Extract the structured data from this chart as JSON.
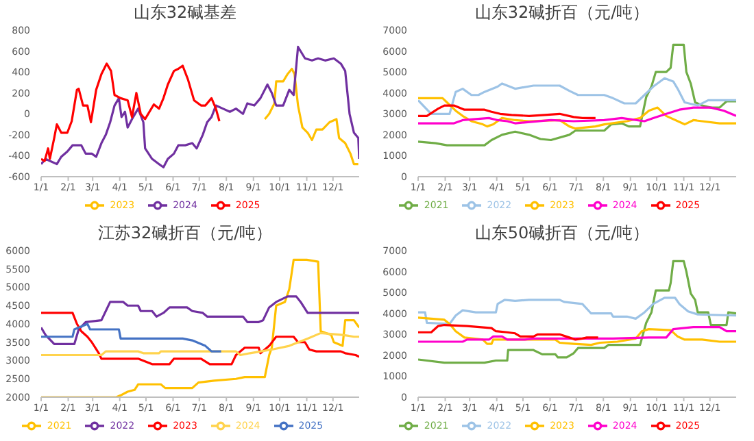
{
  "chart_data": [
    {
      "type": "line",
      "title": "山东32碱基差",
      "xlim": [
        "--01-01",
        "--12-31"
      ],
      "xticks": [
        {
          "value": "--01-01",
          "label": "1/1"
        },
        {
          "value": "--02-01",
          "label": "2/1"
        },
        {
          "value": "--03-01",
          "label": "3/1"
        },
        {
          "value": "--04-01",
          "label": "4/1"
        },
        {
          "value": "--05-01",
          "label": "5/1"
        },
        {
          "value": "--06-01",
          "label": "6/1"
        },
        {
          "value": "--07-01",
          "label": "7/1"
        },
        {
          "value": "--08-01",
          "label": "8/1"
        },
        {
          "value": "--09-01",
          "label": "9/1"
        },
        {
          "value": "--10-01",
          "label": "10/1"
        },
        {
          "value": "--11-01",
          "label": "11/1"
        },
        {
          "value": "--12-01",
          "label": "12/1"
        }
      ],
      "ylim": [
        -600,
        800
      ],
      "yticks": [
        -600,
        -400,
        -200,
        0,
        200,
        400,
        600,
        800
      ],
      "legend": "bottom",
      "series": [
        {
          "name": "2023",
          "color": "#ffc000",
          "x": [
            "--09-14",
            "--09-19",
            "--09-25",
            "--09-27",
            "--10-05",
            "--10-10",
            "--10-15",
            "--10-18",
            "--10-22",
            "--10-27",
            "--11-02",
            "--11-07",
            "--11-12",
            "--11-19",
            "--11-27",
            "--12-05",
            "--12-08",
            "--12-15",
            "--12-21",
            "--12-25",
            "--12-30"
          ],
          "values": [
            -50,
            0,
            100,
            310,
            310,
            380,
            430,
            380,
            80,
            -130,
            -180,
            -250,
            -150,
            -150,
            -80,
            -50,
            -230,
            -280,
            -380,
            -480,
            -480
          ]
        },
        {
          "name": "2024",
          "color": "#7030a0",
          "x": [
            "--01-01",
            "--01-06",
            "--01-11",
            "--01-19",
            "--01-24",
            "--01-31",
            "--02-06",
            "--02-16",
            "--02-21",
            "--02-28",
            "--03-05",
            "--03-11",
            "--03-16",
            "--03-21",
            "--03-26",
            "--03-31",
            "--04-03",
            "--04-07",
            "--04-10",
            "--04-15",
            "--04-22",
            "--04-28",
            "--04-30",
            "--05-08",
            "--05-16",
            "--05-21",
            "--05-26",
            "--06-02",
            "--06-07",
            "--06-15",
            "--06-23",
            "--06-28",
            "--07-05",
            "--07-10",
            "--07-15",
            "--07-20",
            "--07-28",
            "--08-05",
            "--08-12",
            "--08-20",
            "--08-25",
            "--09-02",
            "--09-09",
            "--09-17",
            "--09-22",
            "--09-27",
            "--10-05",
            "--10-12",
            "--10-17",
            "--10-22",
            "--10-30",
            "--11-07",
            "--11-14",
            "--11-22",
            "--12-02",
            "--12-10",
            "--12-15",
            "--12-20",
            "--12-25",
            "--12-30",
            "--12-31"
          ],
          "values": [
            -480,
            -430,
            -450,
            -480,
            -410,
            -360,
            -300,
            -300,
            -380,
            -380,
            -410,
            -280,
            -200,
            -80,
            80,
            150,
            -30,
            20,
            -130,
            -50,
            50,
            -80,
            -330,
            -430,
            -480,
            -510,
            -430,
            -380,
            -300,
            -300,
            -280,
            -330,
            -200,
            -80,
            -30,
            80,
            50,
            20,
            50,
            0,
            100,
            80,
            150,
            280,
            200,
            80,
            80,
            230,
            180,
            640,
            530,
            510,
            530,
            510,
            530,
            480,
            410,
            0,
            -180,
            -230,
            -430
          ]
        },
        {
          "name": "2025",
          "color": "#ff0000",
          "x": [
            "--01-01",
            "--01-05",
            "--01-09",
            "--01-11",
            "--01-16",
            "--01-19",
            "--01-24",
            "--01-31",
            "--02-05",
            "--02-11",
            "--02-13",
            "--02-18",
            "--02-23",
            "--02-27",
            "--03-05",
            "--03-11",
            "--03-17",
            "--03-22",
            "--03-26",
            "--04-02",
            "--04-10",
            "--04-15",
            "--04-20",
            "--04-25",
            "--04-30",
            "--05-10",
            "--05-16",
            "--05-21",
            "--05-26",
            "--06-02",
            "--06-07",
            "--06-12",
            "--06-18",
            "--06-25",
            "--07-03",
            "--07-08",
            "--07-15",
            "--07-20",
            "--07-24"
          ],
          "values": [
            -430,
            -450,
            -330,
            -430,
            -230,
            -100,
            -180,
            -180,
            -70,
            230,
            240,
            80,
            80,
            -80,
            230,
            380,
            480,
            410,
            180,
            150,
            130,
            -30,
            200,
            0,
            -50,
            90,
            50,
            150,
            280,
            410,
            430,
            460,
            330,
            130,
            80,
            80,
            150,
            50,
            -70
          ]
        }
      ]
    },
    {
      "type": "line",
      "title": "山东32碱折百（元/吨）",
      "xlim": [
        "--01-01",
        "--12-31"
      ],
      "xticks": [
        {
          "value": "--01-01",
          "label": "1/1"
        },
        {
          "value": "--02-01",
          "label": "2/1"
        },
        {
          "value": "--03-01",
          "label": "3/1"
        },
        {
          "value": "--04-01",
          "label": "4/1"
        },
        {
          "value": "--05-01",
          "label": "5/1"
        },
        {
          "value": "--06-01",
          "label": "6/1"
        },
        {
          "value": "--07-01",
          "label": "7/1"
        },
        {
          "value": "--08-01",
          "label": "8/1"
        },
        {
          "value": "--09-01",
          "label": "9/1"
        },
        {
          "value": "--10-01",
          "label": "10/1"
        },
        {
          "value": "--11-01",
          "label": "11/1"
        },
        {
          "value": "--12-01",
          "label": "12/1"
        }
      ],
      "ylim": [
        0,
        7000
      ],
      "yticks": [
        0,
        1000,
        2000,
        3000,
        4000,
        5000,
        6000,
        7000
      ],
      "legend": "bottom",
      "series": [
        {
          "name": "2021",
          "color": "#70ad47",
          "x": [
            "--01-01",
            "--01-21",
            "--02-03",
            "--03-18",
            "--03-26",
            "--04-07",
            "--04-22",
            "--05-08",
            "--05-21",
            "--06-02",
            "--06-23",
            "--06-30",
            "--08-02",
            "--08-10",
            "--08-22",
            "--08-30",
            "--09-12",
            "--09-19",
            "--09-25",
            "--09-30",
            "--10-12",
            "--10-17",
            "--10-20",
            "--11-01",
            "--11-04",
            "--11-09",
            "--11-14",
            "--11-22",
            "--12-02",
            "--12-12",
            "--12-20",
            "--12-31"
          ],
          "values": [
            1670,
            1600,
            1500,
            1500,
            1750,
            2000,
            2150,
            2000,
            1800,
            1750,
            2000,
            2200,
            2200,
            2500,
            2550,
            2400,
            2400,
            3800,
            4300,
            5000,
            5000,
            5200,
            6300,
            6300,
            5000,
            4450,
            3550,
            3400,
            3300,
            3300,
            3600,
            3600
          ]
        },
        {
          "name": "2022",
          "color": "#9dc3e6",
          "x": [
            "--01-01",
            "--01-09",
            "--01-16",
            "--02-06",
            "--02-13",
            "--02-21",
            "--03-03",
            "--03-11",
            "--03-18",
            "--04-02",
            "--04-07",
            "--04-22",
            "--05-13",
            "--06-12",
            "--06-23",
            "--07-03",
            "--08-02",
            "--08-12",
            "--08-25",
            "--09-07",
            "--09-17",
            "--09-27",
            "--10-10",
            "--10-20",
            "--10-25",
            "--11-02",
            "--11-17",
            "--11-29",
            "--12-31"
          ],
          "values": [
            3650,
            3300,
            3000,
            3000,
            4050,
            4200,
            3900,
            3900,
            4050,
            4300,
            4450,
            4200,
            4350,
            4350,
            4100,
            3900,
            3900,
            3750,
            3500,
            3500,
            3900,
            4300,
            4700,
            4550,
            4200,
            3550,
            3400,
            3650,
            3650
          ]
        },
        {
          "name": "2023",
          "color": "#ffc000",
          "x": [
            "--01-01",
            "--01-29",
            "--02-03",
            "--02-13",
            "--02-21",
            "--03-03",
            "--03-16",
            "--03-21",
            "--03-28",
            "--04-07",
            "--04-22",
            "--05-08",
            "--06-12",
            "--06-23",
            "--06-30",
            "--07-23",
            "--08-02",
            "--08-28",
            "--09-12",
            "--09-22",
            "--10-02",
            "--10-12",
            "--11-02",
            "--11-12",
            "--11-22",
            "--12-12",
            "--12-31"
          ],
          "values": [
            3750,
            3750,
            3550,
            3150,
            2900,
            2650,
            2500,
            2400,
            2500,
            2800,
            2700,
            2650,
            2700,
            2400,
            2300,
            2400,
            2500,
            2650,
            2800,
            3150,
            3300,
            2900,
            2500,
            2700,
            2650,
            2550,
            2550
          ]
        },
        {
          "name": "2024",
          "color": "#ff00cc",
          "x": [
            "--01-01",
            "--02-11",
            "--02-21",
            "--03-23",
            "--04-02",
            "--04-13",
            "--04-22",
            "--06-02",
            "--06-28",
            "--08-02",
            "--08-22",
            "--09-17",
            "--09-27",
            "--10-12",
            "--10-27",
            "--11-12",
            "--12-02",
            "--12-17",
            "--12-31"
          ],
          "values": [
            2550,
            2550,
            2700,
            2800,
            2700,
            2650,
            2550,
            2700,
            2650,
            2700,
            2800,
            2650,
            2800,
            3000,
            3200,
            3300,
            3300,
            3150,
            2900
          ]
        },
        {
          "name": "2025",
          "color": "#ff0000",
          "x": [
            "--01-01",
            "--01-11",
            "--01-24",
            "--01-31",
            "--02-11",
            "--02-23",
            "--03-18",
            "--03-26",
            "--04-05",
            "--04-18",
            "--05-08",
            "--05-26",
            "--06-12",
            "--06-28",
            "--07-08",
            "--07-23"
          ],
          "values": [
            2900,
            2900,
            3250,
            3400,
            3400,
            3200,
            3200,
            3100,
            3000,
            2950,
            2900,
            2950,
            3000,
            2850,
            2800,
            2800
          ]
        }
      ]
    },
    {
      "type": "line",
      "title": "江苏32碱折百（元/吨）",
      "xlim": [
        "--01-01",
        "--12-31"
      ],
      "xticks": [
        {
          "value": "--01-01",
          "label": "1/1"
        },
        {
          "value": "--02-01",
          "label": "2/1"
        },
        {
          "value": "--03-01",
          "label": "3/1"
        },
        {
          "value": "--04-01",
          "label": "4/1"
        },
        {
          "value": "--05-01",
          "label": "5/1"
        },
        {
          "value": "--06-01",
          "label": "6/1"
        },
        {
          "value": "--07-01",
          "label": "7/1"
        },
        {
          "value": "--08-01",
          "label": "8/1"
        },
        {
          "value": "--09-01",
          "label": "9/1"
        },
        {
          "value": "--10-01",
          "label": "10/1"
        },
        {
          "value": "--11-01",
          "label": "11/1"
        },
        {
          "value": "--12-01",
          "label": "12/1"
        }
      ],
      "ylim": [
        2000,
        6000
      ],
      "yticks": [
        2000,
        2500,
        3000,
        3500,
        4000,
        4500,
        5000,
        5500,
        6000
      ],
      "legend": "bottom",
      "series": [
        {
          "name": "2021",
          "color": "#ffc000",
          "x": [
            "--01-01",
            "--03-28",
            "--04-02",
            "--04-10",
            "--04-18",
            "--04-22",
            "--05-18",
            "--05-23",
            "--06-23",
            "--06-30",
            "--07-18",
            "--08-12",
            "--08-22",
            "--09-14",
            "--09-19",
            "--09-22",
            "--09-27",
            "--10-07",
            "--10-12",
            "--10-17",
            "--11-01",
            "--11-14",
            "--11-17",
            "--11-29",
            "--12-02",
            "--12-12",
            "--12-15",
            "--12-25",
            "--12-31"
          ],
          "values": [
            2000,
            2000,
            2050,
            2150,
            2200,
            2350,
            2350,
            2250,
            2250,
            2400,
            2450,
            2500,
            2550,
            2550,
            3150,
            3350,
            4500,
            4600,
            4950,
            5750,
            5750,
            5700,
            3800,
            3700,
            3500,
            3400,
            4100,
            4100,
            3900
          ]
        },
        {
          "name": "2022",
          "color": "#7030a0",
          "x": [
            "--01-01",
            "--01-06",
            "--01-16",
            "--02-08",
            "--02-13",
            "--02-21",
            "--03-11",
            "--03-16",
            "--03-21",
            "--04-05",
            "--04-10",
            "--04-22",
            "--04-25",
            "--05-08",
            "--05-13",
            "--05-21",
            "--05-28",
            "--06-17",
            "--06-23",
            "--07-05",
            "--07-10",
            "--08-20",
            "--08-25",
            "--09-07",
            "--09-12",
            "--09-19",
            "--09-27",
            "--10-10",
            "--10-20",
            "--10-25",
            "--11-02",
            "--12-31"
          ],
          "values": [
            3900,
            3700,
            3450,
            3450,
            3850,
            4050,
            4100,
            4350,
            4600,
            4600,
            4500,
            4500,
            4350,
            4350,
            4200,
            4300,
            4450,
            4450,
            4350,
            4300,
            4200,
            4200,
            4050,
            4050,
            4100,
            4450,
            4600,
            4750,
            4750,
            4600,
            4300,
            4300
          ]
        },
        {
          "name": "2023",
          "color": "#ff0000",
          "x": [
            "--01-01",
            "--02-06",
            "--02-11",
            "--02-16",
            "--02-23",
            "--02-28",
            "--03-08",
            "--03-11",
            "--04-22",
            "--05-08",
            "--05-28",
            "--06-02",
            "--07-03",
            "--07-13",
            "--08-07",
            "--08-12",
            "--08-22",
            "--09-07",
            "--09-09",
            "--09-19",
            "--09-27",
            "--10-17",
            "--10-22",
            "--10-30",
            "--11-04",
            "--11-12",
            "--12-10",
            "--12-15",
            "--12-27",
            "--12-31"
          ],
          "values": [
            4300,
            4300,
            4000,
            3800,
            3650,
            3500,
            3200,
            3050,
            3050,
            2900,
            2900,
            3050,
            3050,
            2900,
            2900,
            3150,
            3350,
            3350,
            3200,
            3400,
            3650,
            3650,
            3500,
            3500,
            3300,
            3250,
            3250,
            3200,
            3150,
            3100
          ]
        },
        {
          "name": "2024",
          "color": "#ffd34d",
          "x": [
            "--01-01",
            "--03-11",
            "--03-16",
            "--04-22",
            "--04-28",
            "--05-16",
            "--05-18",
            "--08-12",
            "--08-17",
            "--08-28",
            "--09-22",
            "--10-12",
            "--11-02",
            "--11-17",
            "--12-12",
            "--12-25",
            "--12-31"
          ],
          "values": [
            3150,
            3150,
            3250,
            3250,
            3200,
            3200,
            3250,
            3250,
            3150,
            3200,
            3300,
            3400,
            3600,
            3750,
            3700,
            3650,
            3650
          ]
        },
        {
          "name": "2025",
          "color": "#4472c4",
          "x": [
            "--01-01",
            "--02-06",
            "--02-08",
            "--02-18",
            "--02-23",
            "--02-26",
            "--03-31",
            "--04-02",
            "--06-12",
            "--06-23",
            "--07-08",
            "--07-15",
            "--07-26"
          ],
          "values": [
            3650,
            3650,
            3850,
            3950,
            4000,
            3850,
            3850,
            3600,
            3600,
            3550,
            3400,
            3250,
            3250
          ]
        }
      ]
    },
    {
      "type": "line",
      "title": "山东50碱折百（元/吨）",
      "xlim": [
        "--01-01",
        "--12-31"
      ],
      "xticks": [
        {
          "value": "--01-01",
          "label": "1/1"
        },
        {
          "value": "--02-01",
          "label": "2/1"
        },
        {
          "value": "--03-01",
          "label": "3/1"
        },
        {
          "value": "--04-01",
          "label": "4/1"
        },
        {
          "value": "--05-01",
          "label": "5/1"
        },
        {
          "value": "--06-01",
          "label": "6/1"
        },
        {
          "value": "--07-01",
          "label": "7/1"
        },
        {
          "value": "--08-01",
          "label": "8/1"
        },
        {
          "value": "--09-01",
          "label": "9/1"
        },
        {
          "value": "--10-01",
          "label": "10/1"
        },
        {
          "value": "--11-01",
          "label": "11/1"
        },
        {
          "value": "--12-01",
          "label": "12/1"
        }
      ],
      "ylim": [
        0,
        7000
      ],
      "yticks": [
        0,
        1000,
        2000,
        3000,
        4000,
        5000,
        6000,
        7000
      ],
      "legend": "bottom",
      "series": [
        {
          "name": "2021",
          "color": "#70ad47",
          "x": [
            "--01-01",
            "--01-31",
            "--03-18",
            "--03-31",
            "--04-13",
            "--04-14",
            "--05-13",
            "--05-23",
            "--06-07",
            "--06-10",
            "--06-20",
            "--06-28",
            "--07-03",
            "--08-02",
            "--08-07",
            "--09-12",
            "--09-19",
            "--09-25",
            "--09-30",
            "--10-15",
            "--10-17",
            "--10-20",
            "--11-01",
            "--11-04",
            "--11-09",
            "--11-14",
            "--11-17",
            "--11-29",
            "--12-02",
            "--12-20",
            "--12-22",
            "--12-31"
          ],
          "values": [
            1800,
            1650,
            1650,
            1750,
            1750,
            2250,
            2250,
            2050,
            2050,
            1900,
            1900,
            2100,
            2350,
            2350,
            2500,
            2500,
            3550,
            4050,
            5100,
            5100,
            5450,
            6500,
            6500,
            6000,
            4950,
            4650,
            4050,
            4050,
            3450,
            3450,
            4050,
            4000
          ]
        },
        {
          "name": "2022",
          "color": "#9dc3e6",
          "x": [
            "--01-01",
            "--01-09",
            "--01-11",
            "--02-06",
            "--02-13",
            "--02-21",
            "--03-08",
            "--03-31",
            "--04-02",
            "--04-10",
            "--04-22",
            "--05-08",
            "--06-12",
            "--06-17",
            "--07-08",
            "--07-18",
            "--08-10",
            "--08-12",
            "--08-28",
            "--09-07",
            "--09-17",
            "--09-27",
            "--10-10",
            "--10-22",
            "--10-27",
            "--11-06",
            "--11-17",
            "--12-31"
          ],
          "values": [
            4050,
            4050,
            3550,
            3500,
            3900,
            4150,
            4050,
            4050,
            4450,
            4650,
            4600,
            4650,
            4650,
            4550,
            4450,
            4000,
            4000,
            3850,
            3850,
            3750,
            4050,
            4450,
            4750,
            4750,
            4450,
            4100,
            3950,
            3900
          ]
        },
        {
          "name": "2023",
          "color": "#ffc000",
          "x": [
            "--01-01",
            "--01-31",
            "--02-06",
            "--02-13",
            "--02-23",
            "--03-16",
            "--03-21",
            "--03-26",
            "--03-28",
            "--04-22",
            "--06-07",
            "--06-12",
            "--06-28",
            "--07-18",
            "--07-28",
            "--08-17",
            "--09-07",
            "--09-14",
            "--09-22",
            "--10-17",
            "--10-25",
            "--11-02",
            "--11-22",
            "--12-12",
            "--12-31"
          ],
          "values": [
            3800,
            3700,
            3500,
            3150,
            2850,
            2750,
            2550,
            2550,
            2750,
            2750,
            2750,
            2600,
            2550,
            2500,
            2600,
            2650,
            2800,
            3150,
            3250,
            3200,
            2900,
            2750,
            2750,
            2650,
            2650
          ]
        },
        {
          "name": "2024",
          "color": "#ff00cc",
          "x": [
            "--01-01",
            "--02-21",
            "--02-26",
            "--03-23",
            "--03-28",
            "--04-07",
            "--04-13",
            "--05-03",
            "--05-13",
            "--06-23",
            "--08-12",
            "--09-22",
            "--10-12",
            "--10-20",
            "--11-12",
            "--12-12",
            "--12-20",
            "--12-31"
          ],
          "values": [
            2650,
            2650,
            2750,
            2750,
            2900,
            2900,
            2750,
            2750,
            2800,
            2800,
            2800,
            2850,
            2850,
            3250,
            3350,
            3350,
            3150,
            3150
          ]
        },
        {
          "name": "2025",
          "color": "#ff0000",
          "x": [
            "--01-01",
            "--01-16",
            "--01-24",
            "--01-31",
            "--02-26",
            "--03-26",
            "--03-31",
            "--04-13",
            "--04-22",
            "--04-28",
            "--05-13",
            "--05-18",
            "--06-12",
            "--06-23",
            "--06-30",
            "--07-08",
            "--07-13",
            "--07-26"
          ],
          "values": [
            3100,
            3100,
            3400,
            3450,
            3400,
            3300,
            3150,
            3100,
            3050,
            2900,
            2900,
            3000,
            3000,
            2850,
            2750,
            2800,
            2850,
            2850
          ]
        }
      ]
    }
  ]
}
